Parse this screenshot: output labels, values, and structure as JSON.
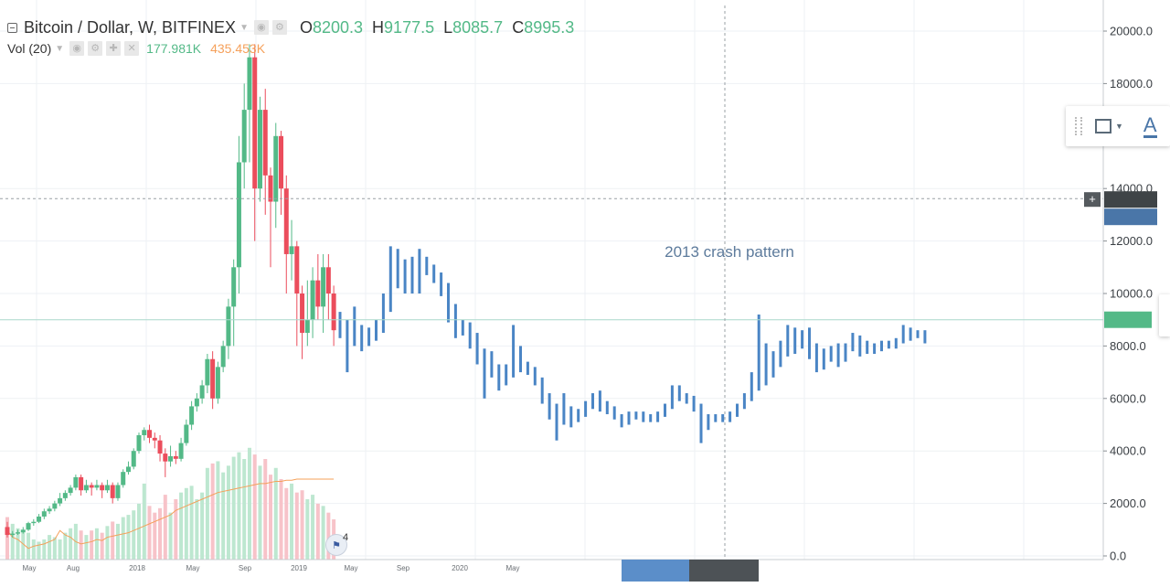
{
  "header": {
    "symbol_title": "Bitcoin / Dollar, W, BITFINEX",
    "ohlc": [
      {
        "key": "O",
        "value": "8200.3"
      },
      {
        "key": "H",
        "value": "9177.5"
      },
      {
        "key": "L",
        "value": "8085.7"
      },
      {
        "key": "C",
        "value": "8995.3"
      }
    ]
  },
  "volume_legend": {
    "label": "Vol (20)",
    "value_1": "177.981K",
    "value_2": "435.453K"
  },
  "toolbar_icons": [
    "eye-icon",
    "gear-icon",
    "plus-icon",
    "close-icon"
  ],
  "drawing_toolbar": {
    "icons": [
      "rectangle-icon",
      "text-icon"
    ],
    "text_tool_label": "A"
  },
  "event_badge": {
    "count": "4"
  },
  "colors": {
    "up": "#53b987",
    "down": "#eb4d5c",
    "projection": "#4a85c5",
    "volume_up": "#bde7d0",
    "volume_down": "#f7c3c9",
    "ma": "#f5a05a",
    "last_price_label": "#53b987",
    "crosshair_label": "#4a76a8"
  },
  "chart_data": {
    "type": "candlestick",
    "title": "Bitcoin / Dollar, W, BITFINEX",
    "y_axis": {
      "min": 0,
      "max": 20000,
      "ticks": [
        "0.0",
        "2000.0",
        "4000.0",
        "6000.0",
        "8000.0",
        "10000.0",
        "12000.0",
        "14000.0",
        "18000.0",
        "20000.0"
      ]
    },
    "x_axis": {
      "ticks": [
        "May",
        "Aug",
        "2018",
        "May",
        "Sep",
        "2019",
        "May",
        "Sep",
        "2020",
        "May"
      ]
    },
    "grid": true,
    "price_labels": {
      "crosshair": "14000.0",
      "last": "9000"
    },
    "annotation": "2013 crash pattern",
    "candles": [
      [
        1100,
        800,
        1300,
        700
      ],
      [
        800,
        850,
        950,
        700
      ],
      [
        850,
        900,
        1000,
        800
      ],
      [
        900,
        1000,
        1100,
        850
      ],
      [
        1000,
        1250,
        1300,
        950
      ],
      [
        1250,
        1300,
        1400,
        1150
      ],
      [
        1300,
        1500,
        1600,
        1250
      ],
      [
        1500,
        1700,
        1800,
        1400
      ],
      [
        1700,
        1800,
        1900,
        1600
      ],
      [
        1800,
        2000,
        2100,
        1700
      ],
      [
        2000,
        2200,
        2400,
        1900
      ],
      [
        2200,
        2400,
        2500,
        2100
      ],
      [
        2400,
        2600,
        2700,
        2300
      ],
      [
        2600,
        3000,
        3100,
        2500
      ],
      [
        3000,
        2500,
        3100,
        2300
      ],
      [
        2500,
        2700,
        2900,
        2400
      ],
      [
        2700,
        2600,
        2800,
        2300
      ],
      [
        2600,
        2700,
        2900,
        2500
      ],
      [
        2700,
        2500,
        2800,
        2200
      ],
      [
        2500,
        2700,
        2900,
        2400
      ],
      [
        2700,
        2200,
        2800,
        2000
      ],
      [
        2200,
        2700,
        2800,
        2100
      ],
      [
        2700,
        3200,
        3300,
        2600
      ],
      [
        3200,
        3400,
        3600,
        3100
      ],
      [
        3400,
        4000,
        4100,
        3300
      ],
      [
        4000,
        4600,
        4700,
        3900
      ],
      [
        4600,
        4800,
        4900,
        4400
      ],
      [
        4800,
        4500,
        5000,
        4300
      ],
      [
        4500,
        4400,
        4700,
        4100
      ],
      [
        4400,
        3900,
        4600,
        3600
      ],
      [
        3900,
        3600,
        4100,
        3000
      ],
      [
        3600,
        3800,
        4200,
        3400
      ],
      [
        3800,
        3700,
        4000,
        3500
      ],
      [
        3700,
        4300,
        4500,
        3600
      ],
      [
        4300,
        5000,
        5200,
        4200
      ],
      [
        5000,
        5700,
        5900,
        4800
      ],
      [
        5700,
        6000,
        6200,
        5500
      ],
      [
        6000,
        6500,
        6700,
        5800
      ],
      [
        6500,
        7500,
        7700,
        6200
      ],
      [
        7500,
        6000,
        7800,
        5600
      ],
      [
        6000,
        7200,
        7400,
        5800
      ],
      [
        7200,
        8000,
        8200,
        7000
      ],
      [
        8000,
        9500,
        9800,
        7500
      ],
      [
        9500,
        11000,
        11300,
        8000
      ],
      [
        11000,
        15000,
        16000,
        10000
      ],
      [
        15000,
        17000,
        18000,
        14000
      ],
      [
        17000,
        19000,
        19500,
        15000
      ],
      [
        19000,
        14000,
        19500,
        12000
      ],
      [
        14000,
        17000,
        17500,
        13500
      ],
      [
        17000,
        14500,
        17800,
        13000
      ],
      [
        14500,
        13500,
        14800,
        11000
      ],
      [
        13500,
        16000,
        16500,
        12500
      ],
      [
        16000,
        14000,
        16200,
        13000
      ],
      [
        14000,
        11500,
        14500,
        10000
      ],
      [
        11500,
        11800,
        12800,
        10500
      ],
      [
        11800,
        10000,
        12000,
        8000
      ],
      [
        10000,
        8500,
        10300,
        7500
      ],
      [
        8500,
        9000,
        10500,
        8000
      ],
      [
        9000,
        10500,
        11000,
        8300
      ],
      [
        10500,
        9500,
        11500,
        9000
      ],
      [
        9500,
        11000,
        11500,
        8500
      ],
      [
        11000,
        10000,
        11500,
        9000
      ],
      [
        10000,
        8600,
        10300,
        8000
      ]
    ],
    "projection": [
      [
        8500,
        8800,
        9300,
        8300
      ],
      [
        8800,
        8300,
        9000,
        7000
      ],
      [
        8300,
        8600,
        9500,
        8000
      ],
      [
        8600,
        8200,
        8800,
        7800
      ],
      [
        8200,
        8400,
        8700,
        8000
      ],
      [
        8400,
        8700,
        9000,
        8200
      ],
      [
        8700,
        9500,
        10000,
        8500
      ],
      [
        9500,
        11200,
        11800,
        9300
      ],
      [
        11200,
        10500,
        11700,
        10200
      ],
      [
        10500,
        11000,
        11300,
        10000
      ],
      [
        11000,
        10200,
        11400,
        10000
      ],
      [
        10200,
        10900,
        11700,
        10000
      ],
      [
        10900,
        11000,
        11400,
        10700
      ],
      [
        11000,
        10600,
        11100,
        10400
      ],
      [
        10600,
        10300,
        10800,
        9900
      ],
      [
        10300,
        9400,
        10400,
        8900
      ],
      [
        9400,
        8600,
        9600,
        8300
      ],
      [
        8600,
        8800,
        9000,
        8400
      ],
      [
        8800,
        8400,
        8900,
        7900
      ],
      [
        8400,
        7800,
        8500,
        7300
      ],
      [
        7800,
        6700,
        7900,
        6000
      ],
      [
        6700,
        7200,
        7800,
        6800
      ],
      [
        7200,
        6600,
        7300,
        6300
      ],
      [
        6600,
        6900,
        7300,
        6500
      ],
      [
        6900,
        7900,
        8800,
        6800
      ],
      [
        7900,
        7300,
        8000,
        7000
      ],
      [
        7300,
        7100,
        7400,
        6900
      ],
      [
        7100,
        6700,
        7200,
        6500
      ],
      [
        6700,
        6100,
        6800,
        5800
      ],
      [
        6100,
        5500,
        6200,
        5200
      ],
      [
        5500,
        5000,
        5800,
        4400
      ],
      [
        5000,
        5500,
        6200,
        5000
      ],
      [
        5500,
        5200,
        5700,
        4900
      ],
      [
        5200,
        5400,
        5600,
        5100
      ],
      [
        5400,
        5700,
        5900,
        5300
      ],
      [
        5700,
        6100,
        6200,
        5600
      ],
      [
        6100,
        5800,
        6300,
        5500
      ],
      [
        5800,
        5600,
        5900,
        5400
      ],
      [
        5600,
        5300,
        5700,
        5200
      ],
      [
        5300,
        5100,
        5400,
        4900
      ],
      [
        5100,
        5300,
        5500,
        5000
      ],
      [
        5300,
        5400,
        5500,
        5200
      ],
      [
        5400,
        5300,
        5500,
        5100
      ],
      [
        5300,
        5200,
        5400,
        5100
      ],
      [
        5200,
        5400,
        5500,
        5100
      ],
      [
        5400,
        5700,
        5800,
        5300
      ],
      [
        5700,
        6300,
        6500,
        5600
      ],
      [
        6300,
        6100,
        6500,
        5900
      ],
      [
        6100,
        6000,
        6200,
        5800
      ],
      [
        6000,
        5600,
        6100,
        5500
      ],
      [
        5600,
        5000,
        5800,
        4300
      ],
      [
        5000,
        5200,
        5400,
        4800
      ],
      [
        5200,
        5300,
        5400,
        5100
      ],
      [
        5300,
        5200,
        5400,
        5100
      ],
      [
        5200,
        5400,
        5500,
        5100
      ],
      [
        5400,
        5700,
        5800,
        5300
      ],
      [
        5700,
        6000,
        6200,
        5600
      ],
      [
        6000,
        6800,
        7000,
        5900
      ],
      [
        6800,
        8000,
        9200,
        6300
      ],
      [
        8000,
        7000,
        8100,
        6500
      ],
      [
        7000,
        7400,
        7800,
        6800
      ],
      [
        7400,
        7800,
        8200,
        7200
      ],
      [
        7800,
        8600,
        8800,
        7600
      ],
      [
        8600,
        8000,
        8700,
        7700
      ],
      [
        8000,
        8400,
        8600,
        7900
      ],
      [
        8400,
        7900,
        8700,
        7500
      ],
      [
        7900,
        7400,
        8100,
        7000
      ],
      [
        7400,
        7600,
        7900,
        7100
      ],
      [
        7600,
        7800,
        8000,
        7400
      ],
      [
        7800,
        7500,
        8100,
        7200
      ],
      [
        7500,
        7900,
        8100,
        7400
      ],
      [
        7900,
        8200,
        8500,
        7800
      ],
      [
        8200,
        7800,
        8400,
        7600
      ],
      [
        7800,
        8000,
        8200,
        7700
      ],
      [
        8000,
        7900,
        8100,
        7700
      ],
      [
        7900,
        8100,
        8200,
        7800
      ],
      [
        8100,
        8000,
        8200,
        7900
      ],
      [
        8000,
        8200,
        8300,
        7900
      ],
      [
        8200,
        8600,
        8800,
        8100
      ],
      [
        8600,
        8400,
        8700,
        8200
      ],
      [
        8400,
        8500,
        8600,
        8300
      ],
      [
        8500,
        8300,
        8600,
        8100
      ]
    ],
    "volume": [
      [
        1300,
        1900
      ],
      [
        1000,
        1600
      ],
      [
        900,
        1400
      ],
      [
        700,
        1300
      ],
      [
        500,
        1200
      ],
      [
        600,
        900
      ],
      [
        650,
        800
      ],
      [
        700,
        900
      ],
      [
        800,
        1100
      ],
      [
        900,
        1000
      ],
      [
        1300,
        900
      ],
      [
        1100,
        1200
      ],
      [
        1000,
        1400
      ],
      [
        800,
        1600
      ],
      [
        700,
        1300
      ],
      [
        750,
        1100
      ],
      [
        800,
        1300
      ],
      [
        900,
        1400
      ],
      [
        850,
        1200
      ],
      [
        1000,
        1500
      ],
      [
        1050,
        1700
      ],
      [
        1100,
        1600
      ],
      [
        1150,
        1900
      ],
      [
        1200,
        2000
      ],
      [
        1300,
        2200
      ],
      [
        1400,
        2500
      ],
      [
        1500,
        3400
      ],
      [
        1600,
        2400
      ],
      [
        1700,
        2100
      ],
      [
        1800,
        2300
      ],
      [
        1900,
        2900
      ],
      [
        2000,
        2100
      ],
      [
        2200,
        2700
      ],
      [
        2300,
        3000
      ],
      [
        2400,
        3200
      ],
      [
        2500,
        3300
      ],
      [
        2600,
        2700
      ],
      [
        2700,
        3000
      ],
      [
        2800,
        4100
      ],
      [
        2900,
        4300
      ],
      [
        3000,
        4400
      ],
      [
        3050,
        3900
      ],
      [
        3100,
        4200
      ],
      [
        3150,
        4600
      ],
      [
        3200,
        4800
      ],
      [
        3250,
        4500
      ],
      [
        3300,
        5000
      ],
      [
        3350,
        4700
      ],
      [
        3400,
        4200
      ],
      [
        3400,
        4500
      ],
      [
        3450,
        3800
      ],
      [
        3500,
        4100
      ],
      [
        3500,
        3600
      ],
      [
        3550,
        3200
      ],
      [
        3550,
        3400
      ],
      [
        3600,
        3000
      ],
      [
        3600,
        3100
      ],
      [
        3600,
        2700
      ],
      [
        3600,
        2900
      ],
      [
        3600,
        2500
      ],
      [
        3600,
        2400
      ],
      [
        3600,
        2100
      ],
      [
        3600,
        1800
      ]
    ]
  }
}
